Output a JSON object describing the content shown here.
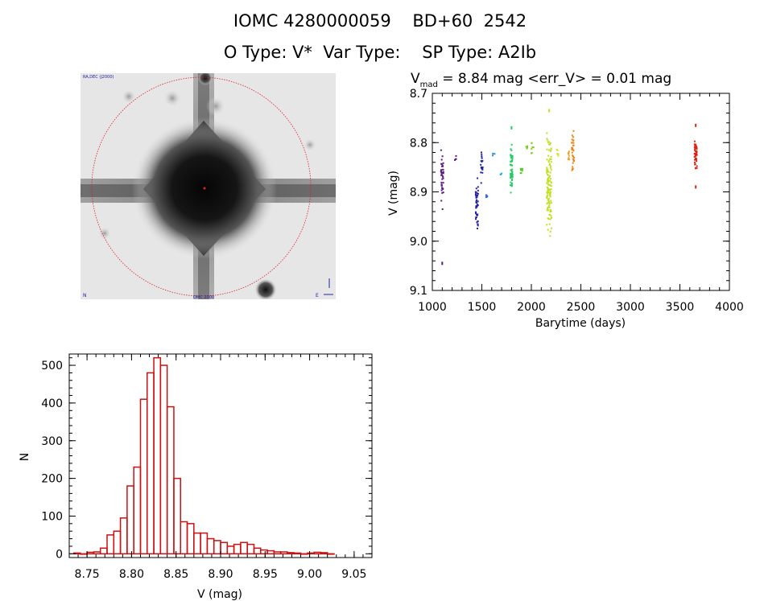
{
  "header": {
    "title_line1": "IOMC 4280000059    BD+60  2542",
    "title_line2": "O Type: V*  Var Type:    SP Type: A2Ib"
  },
  "image_panel": {
    "top_left_label": "RA,DEC (J2000)",
    "bottom_center_label": "OMC 2000",
    "bottom_left_label": "N",
    "bottom_right_label": "E"
  },
  "lightcurve": {
    "title_main": "V",
    "title_sub": "mad",
    "title_rest": " = 8.84 mag <err_V> = 0.01 mag",
    "xlabel": "Barytime (days)",
    "ylabel": "V (mag)",
    "xlim": [
      1000,
      4000
    ],
    "ylim": [
      8.7,
      9.1
    ],
    "y_inverted": true,
    "xticks": [
      1000,
      1500,
      2000,
      2500,
      3000,
      3500,
      4000
    ],
    "xtick_labels": [
      "1000",
      "1500",
      "2000",
      "2500",
      "3000",
      "3500",
      "4000"
    ],
    "yticks": [
      8.7,
      8.8,
      8.9,
      9.0,
      9.1
    ],
    "ytick_labels": [
      "8.7",
      "8.8",
      "8.9",
      "9.0",
      "9.1"
    ],
    "groups": [
      {
        "x": 1100,
        "ymin": 8.8,
        "ymax": 8.96,
        "color": "#5a1a86",
        "n": 40,
        "extra": [
          9.045
        ]
      },
      {
        "x": 1230,
        "ymin": 8.82,
        "ymax": 8.84,
        "color": "#5a1a86",
        "n": 4
      },
      {
        "x": 1450,
        "ymin": 8.85,
        "ymax": 9.01,
        "color": "#2222a8",
        "n": 45
      },
      {
        "x": 1500,
        "ymin": 8.81,
        "ymax": 8.89,
        "color": "#2222a8",
        "n": 20
      },
      {
        "x": 1550,
        "ymin": 8.9,
        "ymax": 8.92,
        "color": "#2266cc",
        "n": 4
      },
      {
        "x": 1620,
        "ymin": 8.82,
        "ymax": 8.83,
        "color": "#2288dd",
        "n": 3
      },
      {
        "x": 1700,
        "ymin": 8.86,
        "ymax": 8.87,
        "color": "#22aadd",
        "n": 3
      },
      {
        "x": 1800,
        "ymin": 8.79,
        "ymax": 8.92,
        "color": "#22cc66",
        "n": 50,
        "extra": [
          8.77
        ]
      },
      {
        "x": 1900,
        "ymin": 8.84,
        "ymax": 8.87,
        "color": "#55cc22",
        "n": 8
      },
      {
        "x": 1960,
        "ymin": 8.8,
        "ymax": 8.82,
        "color": "#77cc22",
        "n": 5
      },
      {
        "x": 2010,
        "ymin": 8.79,
        "ymax": 8.83,
        "color": "#88cc22",
        "n": 8
      },
      {
        "x": 2180,
        "ymin": 8.76,
        "ymax": 9.02,
        "color": "#c0e020",
        "n": 120,
        "extra": [
          8.735
        ]
      },
      {
        "x": 2260,
        "ymin": 8.81,
        "ymax": 8.84,
        "color": "#e0e020",
        "n": 6
      },
      {
        "x": 2380,
        "ymin": 8.81,
        "ymax": 8.84,
        "color": "#f0a020",
        "n": 8
      },
      {
        "x": 2420,
        "ymin": 8.76,
        "ymax": 8.88,
        "color": "#f08010",
        "n": 30
      },
      {
        "x": 3660,
        "ymin": 8.77,
        "ymax": 8.87,
        "color": "#e02010",
        "n": 50,
        "extra": [
          8.765,
          8.89
        ]
      }
    ]
  },
  "histogram": {
    "xlabel": "V (mag)",
    "ylabel": "N",
    "xlim": [
      8.73,
      9.07
    ],
    "ylim": [
      -10,
      530
    ],
    "xticks": [
      8.75,
      8.8,
      8.85,
      8.9,
      8.95,
      9.0,
      9.05
    ],
    "xtick_labels": [
      "8.75",
      "8.80",
      "8.85",
      "8.90",
      "8.95",
      "9.00",
      "9.05"
    ],
    "yticks": [
      0,
      100,
      200,
      300,
      400,
      500
    ],
    "ytick_labels": [
      "0",
      "100",
      "200",
      "300",
      "400",
      "500"
    ],
    "bin_start": 8.735,
    "bin_width": 0.0075,
    "counts": [
      2,
      0,
      4,
      5,
      15,
      50,
      60,
      95,
      180,
      230,
      410,
      480,
      520,
      500,
      390,
      200,
      85,
      80,
      55,
      55,
      40,
      35,
      30,
      20,
      25,
      30,
      25,
      15,
      10,
      8,
      5,
      5,
      3,
      2,
      0,
      2,
      4,
      3,
      0
    ],
    "bar_color": "#cc1111"
  }
}
